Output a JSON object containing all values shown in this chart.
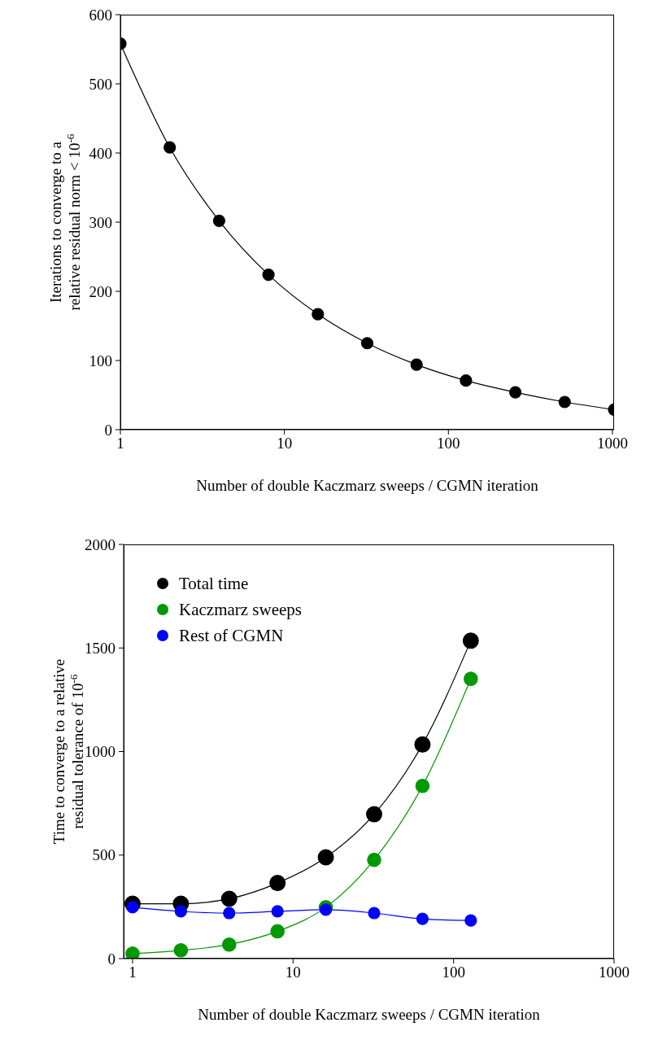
{
  "chart_data": [
    {
      "type": "line",
      "xlabel": "Number of double Kaczmarz sweeps / CGMN iteration",
      "ylabel": "Iterations to converge to a\nrelative residual norm < 10$^{-6}$",
      "x": [
        1,
        2,
        4,
        8,
        16,
        32,
        64,
        128,
        256,
        512,
        1024
      ],
      "values": [
        558,
        408,
        302,
        224,
        167,
        125,
        94,
        71,
        54,
        40,
        29
      ],
      "color": "#000000",
      "xlim": [
        1,
        1024
      ],
      "xticks": [
        1,
        10,
        100,
        1000
      ],
      "ylim": [
        0,
        600
      ],
      "yticks": [
        0,
        100,
        200,
        300,
        400,
        500,
        600
      ],
      "log": "x",
      "grid": false,
      "marker": "circle",
      "line_style": "solid"
    },
    {
      "type": "line",
      "xlabel": "Number of double Kaczmarz sweeps / CGMN iteration",
      "ylabel": "Time to converge to a relative\nresidual tolerance of 10$^{-6}$",
      "x": [
        1,
        2,
        4,
        8,
        16,
        32,
        64,
        128
      ],
      "series": [
        {
          "name": "Total time",
          "color": "#000000",
          "values": [
            265,
            265,
            289,
            365,
            489,
            697,
            1034,
            1535
          ]
        },
        {
          "name": "Kaczmarz sweeps",
          "color": "#009900",
          "values": [
            24,
            40,
            68,
            132,
            248,
            477,
            834,
            1351
          ]
        },
        {
          "name": "Rest of CGMN",
          "color": "#0000ff",
          "values": [
            248,
            228,
            220,
            228,
            236,
            220,
            192,
            184
          ]
        }
      ],
      "xlim": [
        0.88,
        1000
      ],
      "xticks": [
        1,
        10,
        100,
        1000
      ],
      "ylim": [
        0,
        2000
      ],
      "yticks": [
        0,
        500,
        1000,
        1500,
        2000
      ],
      "log": "x",
      "grid": false,
      "marker": "circle",
      "line_style": "solid",
      "legend": "top left"
    }
  ]
}
